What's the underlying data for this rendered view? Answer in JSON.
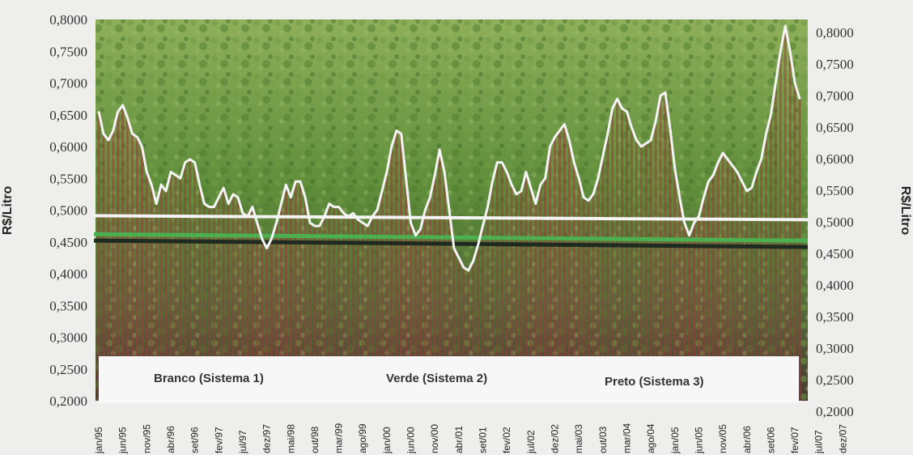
{
  "chart_data": {
    "type": "line",
    "ylabel_left": "R$/Litro",
    "ylabel_right": "R$/Litro",
    "ylim": [
      0.2,
      0.8
    ],
    "y_ticks": [
      "0,2000",
      "0,2500",
      "0,3000",
      "0,3500",
      "0,4000",
      "0,4500",
      "0,5000",
      "0,5500",
      "0,6000",
      "0,6500",
      "0,7000",
      "0,7500",
      "0,8000"
    ],
    "x_start": "jan/95",
    "x_tick_labels": [
      "jan/95",
      "jun/95",
      "nov/95",
      "abr/96",
      "set/96",
      "fev/97",
      "jul/97",
      "dez/97",
      "mai/98",
      "out/98",
      "mar/99",
      "ago/99",
      "jan/00",
      "jun/00",
      "nov/00",
      "abr/01",
      "set/01",
      "fev/02",
      "jul/02",
      "dez/02",
      "mai/03",
      "out/03",
      "mar/04",
      "ago/04",
      "jan/05",
      "jun/05",
      "nov/05",
      "abr/06",
      "set/06",
      "fev/07",
      "jul/07",
      "dez/07"
    ],
    "legend": [
      "Branco (Sistema 1)",
      "Verde (Sistema 2)",
      "Preto (Sistema 3)"
    ],
    "series": [
      {
        "name": "Branco (Sistema 1)",
        "kind": "monthly",
        "color": "#f4f4f4",
        "values": [
          0.655,
          0.62,
          0.61,
          0.625,
          0.655,
          0.665,
          0.645,
          0.62,
          0.615,
          0.6,
          0.56,
          0.54,
          0.51,
          0.54,
          0.53,
          0.56,
          0.555,
          0.55,
          0.575,
          0.58,
          0.575,
          0.54,
          0.51,
          0.505,
          0.505,
          0.52,
          0.535,
          0.51,
          0.525,
          0.52,
          0.495,
          0.49,
          0.505,
          0.48,
          0.455,
          0.44,
          0.455,
          0.48,
          0.51,
          0.54,
          0.52,
          0.545,
          0.545,
          0.52,
          0.48,
          0.475,
          0.475,
          0.49,
          0.51,
          0.505,
          0.505,
          0.495,
          0.49,
          0.495,
          0.485,
          0.48,
          0.475,
          0.49,
          0.5,
          0.53,
          0.56,
          0.6,
          0.625,
          0.62,
          0.55,
          0.48,
          0.46,
          0.47,
          0.5,
          0.52,
          0.555,
          0.595,
          0.56,
          0.5,
          0.44,
          0.425,
          0.41,
          0.405,
          0.42,
          0.445,
          0.475,
          0.505,
          0.545,
          0.575,
          0.575,
          0.56,
          0.54,
          0.525,
          0.53,
          0.56,
          0.535,
          0.51,
          0.54,
          0.55,
          0.6,
          0.615,
          0.625,
          0.635,
          0.61,
          0.575,
          0.55,
          0.52,
          0.515,
          0.525,
          0.55,
          0.585,
          0.62,
          0.66,
          0.675,
          0.66,
          0.655,
          0.63,
          0.61,
          0.6,
          0.605,
          0.61,
          0.64,
          0.68,
          0.685,
          0.63,
          0.565,
          0.52,
          0.48,
          0.46,
          0.48,
          0.49,
          0.52,
          0.545,
          0.555,
          0.575,
          0.59,
          0.58,
          0.57,
          0.56,
          0.545,
          0.53,
          0.535,
          0.56,
          0.58,
          0.62,
          0.65,
          0.7,
          0.75,
          0.79,
          0.75,
          0.7,
          0.675
        ]
      },
      {
        "name": "Branco (Sistema 1)",
        "kind": "average",
        "color": "#f4f4f4",
        "value": 0.488
      },
      {
        "name": "Verde (Sistema 2)",
        "kind": "average",
        "color": "#4caf50",
        "value": 0.457
      },
      {
        "name": "Preto (Sistema 3)",
        "kind": "average",
        "color": "#1f2a20",
        "value": 0.447
      }
    ],
    "colors": {
      "photo_light": "#7fa24a",
      "photo_mid": "#5b8a38",
      "photo_dark": "#4a3a2a",
      "bar_fill": "#9c3b3b",
      "background": "#eeeeec"
    }
  }
}
